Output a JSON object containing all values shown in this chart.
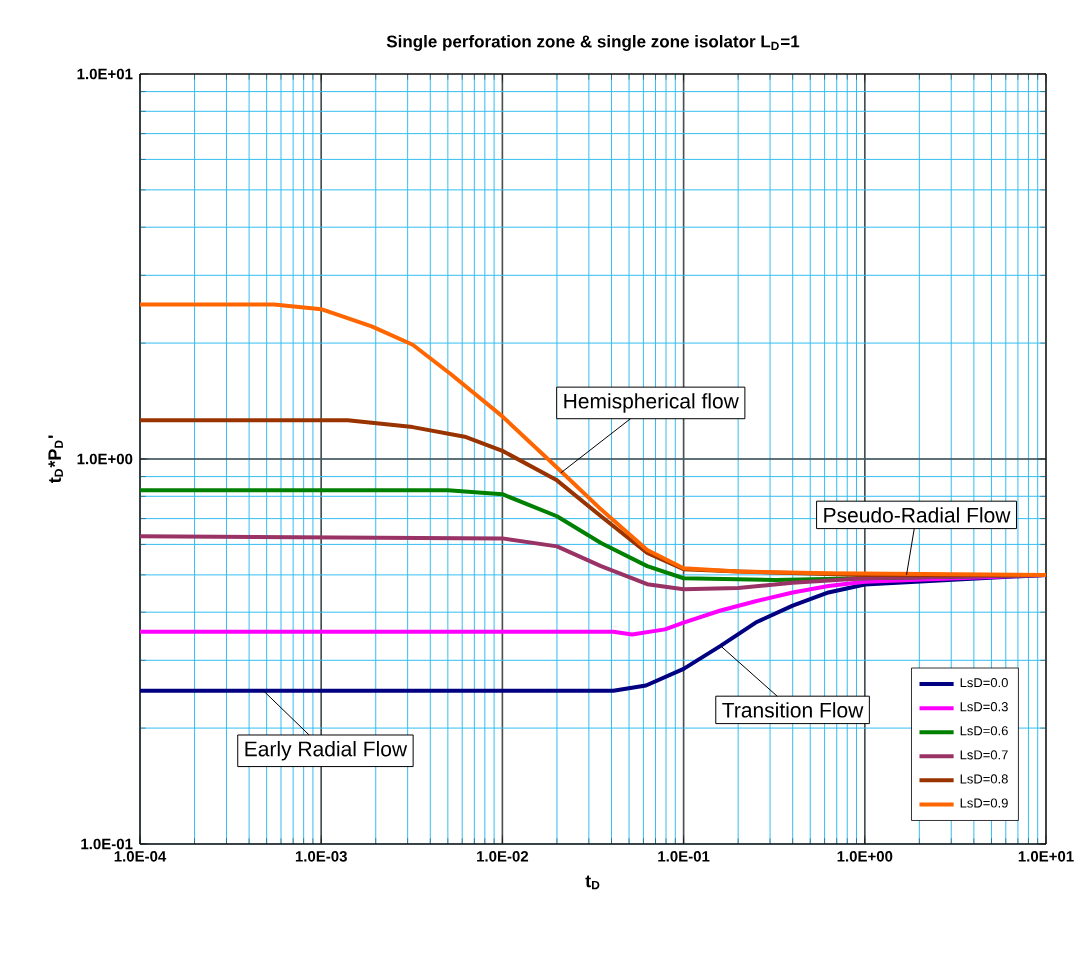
{
  "chart_data": {
    "type": "line",
    "title": "Single perforation zone & single zone isolator L$_{D}$=1",
    "xlabel": "t$_{D}$",
    "ylabel": "t$_{D}$*P$_{D}$'",
    "log": "xy",
    "grid": true,
    "legend": "bottom right",
    "xlim": [
      0.0001,
      10
    ],
    "ylim": [
      0.1,
      10
    ],
    "xticks": [
      {
        "value": 0.0001,
        "label": "1.0E-04"
      },
      {
        "value": 0.001,
        "label": "1.0E-03"
      },
      {
        "value": 0.01,
        "label": "1.0E-02"
      },
      {
        "value": 0.1,
        "label": "1.0E-01"
      },
      {
        "value": 1,
        "label": "1.0E+00"
      },
      {
        "value": 10,
        "label": "1.0E+01"
      }
    ],
    "yticks": [
      {
        "value": 0.1,
        "label": "1.0E-01"
      },
      {
        "value": 1,
        "label": "1.0E+00"
      },
      {
        "value": 10,
        "label": "1.0E+01"
      }
    ],
    "series": [
      {
        "name": "LsD=0.0",
        "color": "#000080",
        "x": [
          0.0001,
          0.041,
          0.062,
          0.1,
          0.16,
          0.25,
          0.4,
          0.63,
          1,
          3.2,
          10
        ],
        "values": [
          0.25,
          0.25,
          0.258,
          0.285,
          0.327,
          0.376,
          0.416,
          0.45,
          0.472,
          null,
          0.5
        ]
      },
      {
        "name": "LsD=0.3",
        "color": "#ff00ff",
        "x": [
          0.0001,
          0.041,
          0.052,
          0.079,
          0.1,
          0.16,
          0.25,
          0.4,
          0.63,
          1,
          3.2,
          10
        ],
        "values": [
          0.356,
          0.356,
          0.35,
          0.361,
          0.376,
          0.404,
          0.427,
          0.45,
          0.468,
          0.48,
          0.49,
          0.5
        ]
      },
      {
        "name": "LsD=0.6",
        "color": "#008000",
        "x": [
          0.0001,
          0.005,
          0.01,
          0.02,
          0.035,
          0.063,
          0.1,
          0.32,
          1,
          10
        ],
        "values": [
          0.83,
          0.83,
          0.81,
          0.71,
          0.605,
          0.527,
          0.49,
          0.485,
          0.49,
          0.5
        ]
      },
      {
        "name": "LsD=0.7",
        "color": "#993366",
        "x": [
          0.0001,
          0.01,
          0.02,
          0.035,
          0.063,
          0.1,
          0.2,
          0.4,
          1,
          10
        ],
        "values": [
          0.63,
          0.622,
          0.593,
          0.527,
          0.473,
          0.459,
          0.462,
          0.477,
          0.49,
          0.5
        ]
      },
      {
        "name": "LsD=0.8",
        "color": "#993300",
        "x": [
          0.0001,
          0.0014,
          0.0032,
          0.0063,
          0.01,
          0.02,
          0.035,
          0.063,
          0.1,
          0.2,
          1,
          10
        ],
        "values": [
          1.26,
          1.26,
          1.21,
          1.14,
          1.05,
          0.88,
          0.71,
          0.57,
          0.517,
          0.51,
          0.5,
          0.5
        ]
      },
      {
        "name": "LsD=0.9",
        "color": "#ff6600",
        "x": [
          0.0001,
          0.00055,
          0.001,
          0.0019,
          0.0032,
          0.0052,
          0.01,
          0.02,
          0.035,
          0.063,
          0.1,
          0.2,
          0.63,
          10
        ],
        "values": [
          2.52,
          2.52,
          2.45,
          2.21,
          1.98,
          1.66,
          1.29,
          0.95,
          0.74,
          0.58,
          0.52,
          0.51,
          0.505,
          0.5
        ]
      }
    ],
    "annotations": [
      {
        "text": "Hemispherical flow",
        "x": 0.021,
        "y": 0.92
      },
      {
        "text": "Pseudo-Radial Flow",
        "x": 1.7,
        "y": 0.5
      },
      {
        "text": "Transition Flow",
        "x": 0.16,
        "y": 0.327
      },
      {
        "text": "Early Radial Flow",
        "x": 0.00048,
        "y": 0.25
      }
    ]
  }
}
